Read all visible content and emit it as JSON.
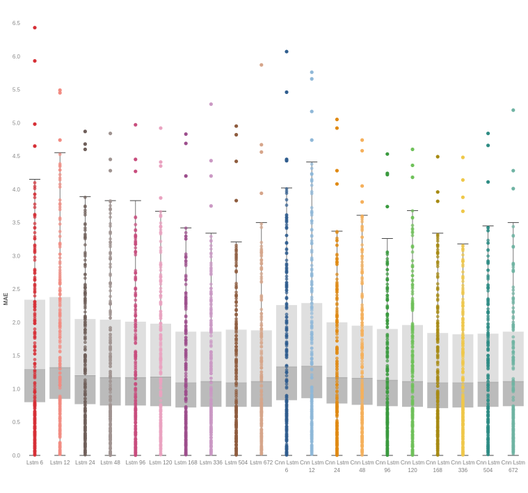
{
  "chart_data": {
    "type": "boxplot",
    "title": "",
    "xlabel": "",
    "ylabel": "MAE",
    "ylim": [
      0,
      6.5
    ],
    "y_ticks": [
      "0.0",
      "0.5",
      "1.0",
      "1.5",
      "2.0",
      "2.5",
      "3.0",
      "3.5",
      "4.0",
      "4.5",
      "5.0",
      "5.5",
      "6.0",
      "6.5"
    ],
    "grid": false,
    "series": [
      {
        "name": "Lstm 6",
        "label_lines": [
          "Lstm 6"
        ],
        "color": "#d62f36",
        "whisker_low": 0.0,
        "q1": 0.8,
        "median": 1.29,
        "q3": 2.34,
        "whisker_high": 4.15,
        "outliers": [
          4.65,
          4.98,
          5.93,
          6.43
        ]
      },
      {
        "name": "Lstm 12",
        "label_lines": [
          "Lstm 12"
        ],
        "color": "#f28b82",
        "whisker_low": 0.0,
        "q1": 0.85,
        "median": 1.32,
        "q3": 2.38,
        "whisker_high": 4.55,
        "outliers": [
          4.74,
          5.45,
          5.49
        ]
      },
      {
        "name": "Lstm 24",
        "label_lines": [
          "Lstm 24"
        ],
        "color": "#6f5f5a",
        "whisker_low": 0.0,
        "q1": 0.77,
        "median": 1.2,
        "q3": 2.05,
        "whisker_high": 3.89,
        "outliers": [
          4.6,
          4.68,
          4.87
        ]
      },
      {
        "name": "Lstm 48",
        "label_lines": [
          "Lstm 48"
        ],
        "color": "#9f9390",
        "whisker_low": 0.0,
        "q1": 0.75,
        "median": 1.17,
        "q3": 2.04,
        "whisker_high": 3.83,
        "outliers": [
          4.28,
          4.45,
          4.84
        ]
      },
      {
        "name": "Lstm 96",
        "label_lines": [
          "Lstm 96"
        ],
        "color": "#c84d7d",
        "whisker_low": 0.0,
        "q1": 0.75,
        "median": 1.17,
        "q3": 2.01,
        "whisker_high": 3.83,
        "outliers": [
          4.27,
          4.45,
          4.97
        ]
      },
      {
        "name": "Lstm 120",
        "label_lines": [
          "Lstm 120"
        ],
        "color": "#eaa3c1",
        "whisker_low": 0.0,
        "q1": 0.74,
        "median": 1.18,
        "q3": 1.98,
        "whisker_high": 3.67,
        "outliers": [
          3.87,
          4.35,
          4.41,
          4.92
        ]
      },
      {
        "name": "Lstm 168",
        "label_lines": [
          "Lstm 168"
        ],
        "color": "#9c4e8c",
        "whisker_low": 0.0,
        "q1": 0.72,
        "median": 1.09,
        "q3": 1.86,
        "whisker_high": 3.42,
        "outliers": [
          4.2,
          4.69,
          4.83
        ]
      },
      {
        "name": "Lstm 336",
        "label_lines": [
          "Lstm 336"
        ],
        "color": "#cb99c4",
        "whisker_low": 0.0,
        "q1": 0.73,
        "median": 1.11,
        "q3": 1.86,
        "whisker_high": 3.34,
        "outliers": [
          3.75,
          4.2,
          4.43,
          5.28
        ]
      },
      {
        "name": "Lstm 504",
        "label_lines": [
          "Lstm 504"
        ],
        "color": "#8e5c3e",
        "whisker_low": 0.0,
        "q1": 0.73,
        "median": 1.09,
        "q3": 1.89,
        "whisker_high": 3.21,
        "outliers": [
          3.83,
          4.42,
          4.82,
          4.95
        ]
      },
      {
        "name": "Lstm 672",
        "label_lines": [
          "Lstm 672"
        ],
        "color": "#d6a58a",
        "whisker_low": 0.0,
        "q1": 0.73,
        "median": 1.11,
        "q3": 1.88,
        "whisker_high": 3.5,
        "outliers": [
          3.94,
          4.56,
          4.67,
          5.87
        ]
      },
      {
        "name": "Cnn Lstm 6",
        "label_lines": [
          "Cnn Lstm",
          "6"
        ],
        "color": "#2f5d8e",
        "whisker_low": 0.0,
        "q1": 0.83,
        "median": 1.33,
        "q3": 2.26,
        "whisker_high": 4.02,
        "outliers": [
          4.43,
          4.45,
          5.46,
          6.07
        ]
      },
      {
        "name": "Cnn Lstm 12",
        "label_lines": [
          "Cnn Lstm",
          "12"
        ],
        "color": "#8fb8d8",
        "whisker_low": 0.0,
        "q1": 0.86,
        "median": 1.34,
        "q3": 2.29,
        "whisker_high": 4.41,
        "outliers": [
          4.74,
          5.17,
          5.66,
          5.76
        ]
      },
      {
        "name": "Cnn Lstm 24",
        "label_lines": [
          "Cnn Lstm",
          "24"
        ],
        "color": "#e08a14",
        "whisker_low": 0.0,
        "q1": 0.78,
        "median": 1.17,
        "q3": 2.0,
        "whisker_high": 3.37,
        "outliers": [
          4.08,
          4.28,
          4.92,
          5.05
        ]
      },
      {
        "name": "Cnn Lstm 48",
        "label_lines": [
          "Cnn Lstm",
          "48"
        ],
        "color": "#f5b05c",
        "whisker_low": 0.0,
        "q1": 0.76,
        "median": 1.16,
        "q3": 1.95,
        "whisker_high": 3.61,
        "outliers": [
          3.81,
          4.05,
          4.58,
          4.74
        ]
      },
      {
        "name": "Cnn Lstm 96",
        "label_lines": [
          "Cnn Lstm",
          "96"
        ],
        "color": "#3a9a3e",
        "whisker_low": 0.0,
        "q1": 0.74,
        "median": 1.13,
        "q3": 1.9,
        "whisker_high": 3.26,
        "outliers": [
          3.74,
          4.22,
          4.24,
          4.53
        ]
      },
      {
        "name": "Cnn Lstm 120",
        "label_lines": [
          "Cnn Lstm",
          "120"
        ],
        "color": "#6fc15a",
        "whisker_low": 0.0,
        "q1": 0.73,
        "median": 1.11,
        "q3": 1.96,
        "whisker_high": 3.68,
        "outliers": [
          4.18,
          4.36,
          4.6
        ]
      },
      {
        "name": "Cnn Lstm 168",
        "label_lines": [
          "Cnn Lstm",
          "168"
        ],
        "color": "#a68a12",
        "whisker_low": 0.0,
        "q1": 0.71,
        "median": 1.09,
        "q3": 1.84,
        "whisker_high": 3.34,
        "outliers": [
          3.82,
          3.96,
          4.49
        ]
      },
      {
        "name": "Cnn Lstm 336",
        "label_lines": [
          "Cnn Lstm",
          "336"
        ],
        "color": "#efc84a",
        "whisker_low": 0.0,
        "q1": 0.72,
        "median": 1.09,
        "q3": 1.82,
        "whisker_high": 3.18,
        "outliers": [
          3.67,
          3.88,
          4.14,
          4.48
        ]
      },
      {
        "name": "Cnn Lstm 504",
        "label_lines": [
          "Cnn Lstm",
          "504"
        ],
        "color": "#2e8c84",
        "whisker_low": 0.0,
        "q1": 0.73,
        "median": 1.1,
        "q3": 1.83,
        "whisker_high": 3.45,
        "outliers": [
          4.11,
          4.66,
          4.84
        ]
      },
      {
        "name": "Cnn Lstm 672",
        "label_lines": [
          "Cnn Lstm",
          "672"
        ],
        "color": "#6fb3a3",
        "whisker_low": 0.0,
        "q1": 0.74,
        "median": 1.11,
        "q3": 1.86,
        "whisker_high": 3.5,
        "outliers": [
          4.01,
          4.28,
          5.19
        ]
      }
    ]
  }
}
